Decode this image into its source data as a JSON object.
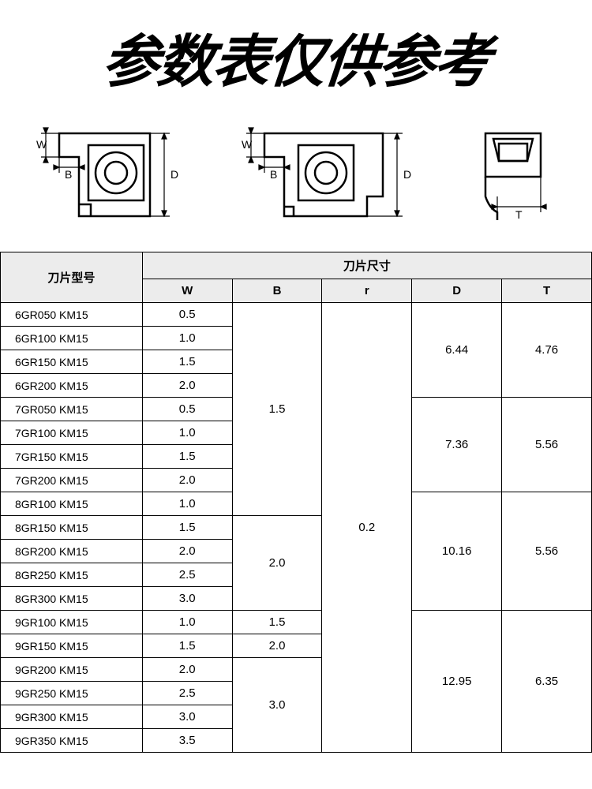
{
  "title": "参数表仅供参考",
  "table": {
    "header_model": "刀片型号",
    "header_dims": "刀片尺寸",
    "columns": [
      "W",
      "B",
      "r",
      "D",
      "T"
    ],
    "rows": [
      {
        "model": "6GR050 KM15",
        "W": "0.5"
      },
      {
        "model": "6GR100 KM15",
        "W": "1.0"
      },
      {
        "model": "6GR150 KM15",
        "W": "1.5"
      },
      {
        "model": "6GR200 KM15",
        "W": "2.0"
      },
      {
        "model": "7GR050 KM15",
        "W": "0.5"
      },
      {
        "model": "7GR100 KM15",
        "W": "1.0"
      },
      {
        "model": "7GR150 KM15",
        "W": "1.5"
      },
      {
        "model": "7GR200 KM15",
        "W": "2.0"
      },
      {
        "model": "8GR100 KM15",
        "W": "1.0"
      },
      {
        "model": "8GR150 KM15",
        "W": "1.5"
      },
      {
        "model": "8GR200 KM15",
        "W": "2.0"
      },
      {
        "model": "8GR250 KM15",
        "W": "2.5"
      },
      {
        "model": "8GR300 KM15",
        "W": "3.0"
      },
      {
        "model": "9GR100 KM15",
        "W": "1.0"
      },
      {
        "model": "9GR150 KM15",
        "W": "1.5"
      },
      {
        "model": "9GR200 KM15",
        "W": "2.0"
      },
      {
        "model": "9GR250 KM15",
        "W": "2.5"
      },
      {
        "model": "9GR300 KM15",
        "W": "3.0"
      },
      {
        "model": "9GR350 KM15",
        "W": "3.5"
      }
    ],
    "B_spans": [
      {
        "start": 0,
        "span": 9,
        "value": "1.5"
      },
      {
        "start": 9,
        "span": 4,
        "value": "2.0"
      },
      {
        "start": 13,
        "span": 1,
        "value": "1.5"
      },
      {
        "start": 14,
        "span": 1,
        "value": "2.0"
      },
      {
        "start": 15,
        "span": 4,
        "value": "3.0"
      }
    ],
    "r_spans": [
      {
        "start": 0,
        "span": 19,
        "value": "0.2"
      }
    ],
    "D_spans": [
      {
        "start": 0,
        "span": 4,
        "value": "6.44"
      },
      {
        "start": 4,
        "span": 4,
        "value": "7.36"
      },
      {
        "start": 8,
        "span": 5,
        "value": "10.16"
      },
      {
        "start": 13,
        "span": 6,
        "value": "12.95"
      }
    ],
    "T_spans": [
      {
        "start": 0,
        "span": 4,
        "value": "4.76"
      },
      {
        "start": 4,
        "span": 4,
        "value": "5.56"
      },
      {
        "start": 8,
        "span": 5,
        "value": "5.56"
      },
      {
        "start": 13,
        "span": 6,
        "value": "6.35"
      }
    ]
  },
  "dim_labels": {
    "W": "W",
    "B": "B",
    "D": "D",
    "T": "T"
  },
  "colors": {
    "stroke": "#000000",
    "header_bg": "#ececec",
    "bg": "#ffffff"
  }
}
